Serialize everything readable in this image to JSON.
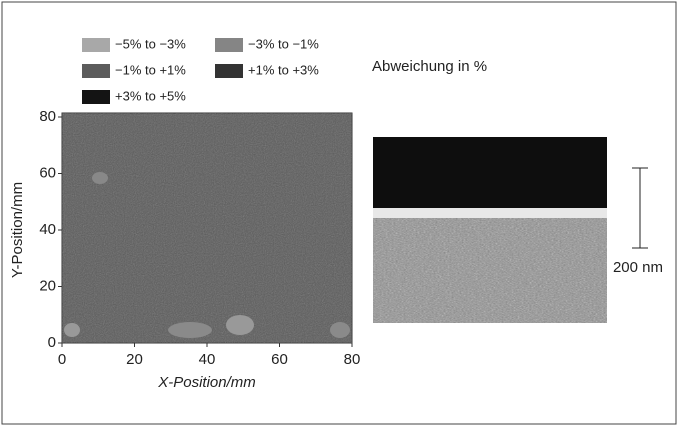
{
  "chart_data": {
    "type": "map",
    "legend": [
      {
        "label": "−5% to −3%",
        "color": "#a8a8a8"
      },
      {
        "label": "−3% to −1%",
        "color": "#858585"
      },
      {
        "label": "−1% to +1%",
        "color": "#5c5c5c"
      },
      {
        "label": "+1% to +3%",
        "color": "#333333"
      },
      {
        "label": "+3% to +5%",
        "color": "#141414"
      }
    ],
    "annotation": "Abweichung in %",
    "xlabel": "X-Position/mm",
    "ylabel": "Y-Position/mm",
    "xlim": [
      0,
      80
    ],
    "ylim": [
      0,
      80
    ],
    "xticks": [
      0,
      20,
      40,
      60,
      80
    ],
    "yticks": [
      0,
      20,
      40,
      60,
      80
    ],
    "scale_bar": "200 nm"
  }
}
